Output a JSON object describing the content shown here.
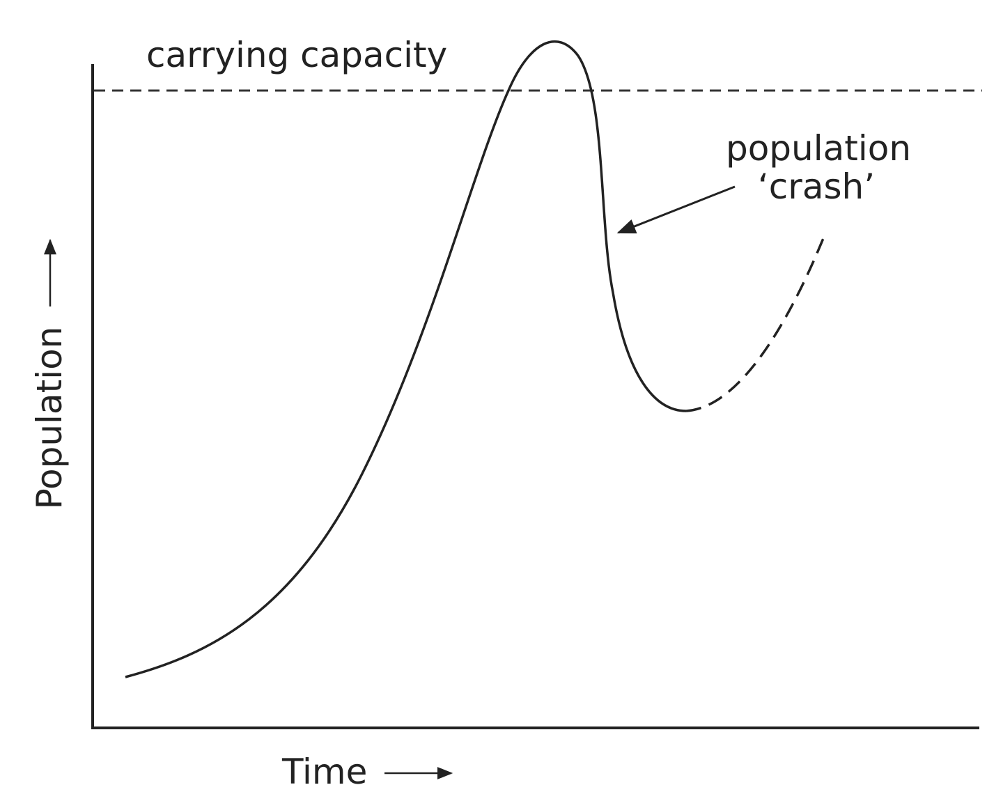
{
  "labels": {
    "carrying_capacity": "carrying capacity",
    "crash_line1": "population",
    "crash_line2": "‘crash’"
  },
  "axes": {
    "y_label": "Population",
    "x_label": "Time"
  }
}
